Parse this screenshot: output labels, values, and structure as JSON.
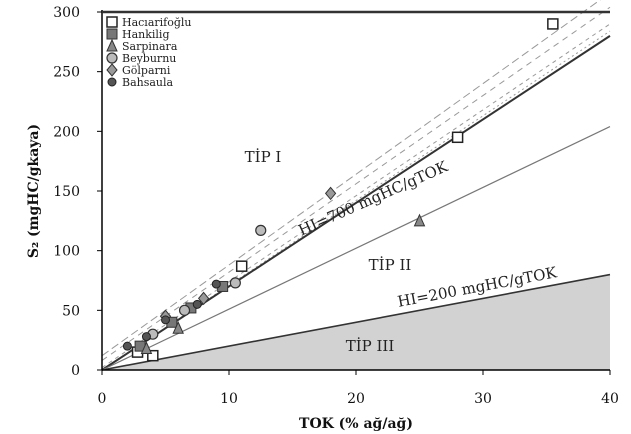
{
  "chart_data": {
    "type": "scatter",
    "title": "",
    "xlabel": "TOK (% ağ/ağ)",
    "ylabel": "S₂ (mgHC/gkaya)",
    "xlim": [
      0,
      40
    ],
    "ylim": [
      0,
      300
    ],
    "xticks": [
      0,
      10,
      20,
      30,
      40
    ],
    "yticks": [
      0,
      50,
      100,
      150,
      200,
      250,
      300
    ],
    "legend_position": "top-left",
    "series": [
      {
        "name": "Hacıarifoğlu",
        "marker": "square",
        "points": [
          [
            2.8,
            15
          ],
          [
            4,
            12
          ],
          [
            11,
            87
          ],
          [
            28,
            195
          ],
          [
            35.5,
            290
          ]
        ]
      },
      {
        "name": "Hankilig",
        "marker": "square-filled",
        "points": [
          [
            3,
            20
          ],
          [
            5.5,
            40
          ],
          [
            7,
            52
          ],
          [
            9.5,
            70
          ]
        ]
      },
      {
        "name": "Sarpinara",
        "marker": "triangle",
        "points": [
          [
            3.5,
            18
          ],
          [
            6,
            35
          ],
          [
            25,
            125
          ]
        ]
      },
      {
        "name": "Beyburnu",
        "marker": "circle-open",
        "points": [
          [
            4,
            30
          ],
          [
            6.5,
            50
          ],
          [
            10.5,
            73
          ],
          [
            12.5,
            117
          ]
        ]
      },
      {
        "name": "Gölparni",
        "marker": "diamond",
        "points": [
          [
            5,
            45
          ],
          [
            8,
            60
          ],
          [
            18,
            148
          ]
        ]
      },
      {
        "name": "Bahsaula",
        "marker": "circle",
        "points": [
          [
            2,
            20
          ],
          [
            3.5,
            28
          ],
          [
            5,
            42
          ],
          [
            7.5,
            55
          ],
          [
            9,
            72
          ]
        ]
      }
    ],
    "lines": [
      {
        "label": "HI=700 mgHC/gTOK",
        "slope": 7
      },
      {
        "label": "HI=200 mgHC/gTOK",
        "slope": 2
      }
    ],
    "regions": [
      {
        "label": "TİP I"
      },
      {
        "label": "TİP II"
      },
      {
        "label": "TİP III"
      }
    ],
    "colors": {
      "type3_fill": "#d2d2d2",
      "line": "#333333",
      "guide": "#999999"
    }
  }
}
